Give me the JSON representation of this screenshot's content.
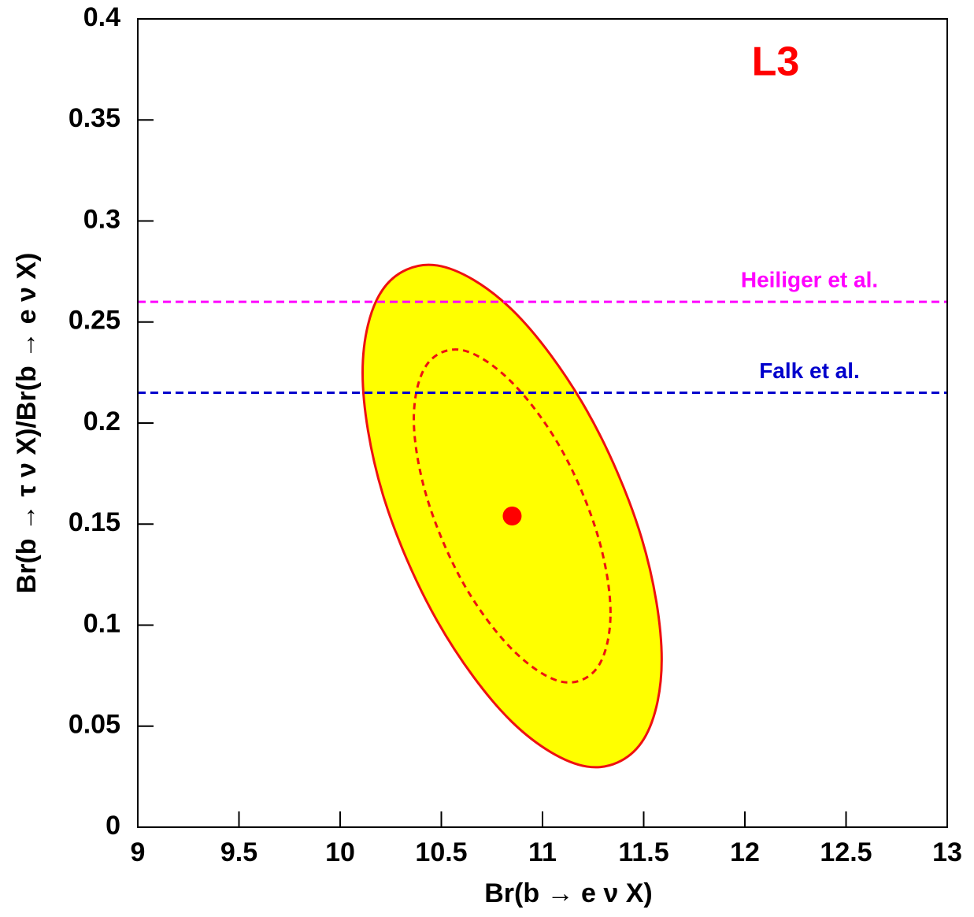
{
  "chart_data": {
    "type": "contour",
    "title": "L3",
    "x_label": "Br(b → e ν X)",
    "y_label": "Br(b → τ ν X)/Br(b → e ν X)",
    "xlim": [
      9,
      13
    ],
    "ylim": [
      0,
      0.4
    ],
    "xticks": [
      9,
      9.5,
      10,
      10.5,
      11,
      11.5,
      12,
      12.5,
      13
    ],
    "yticks": [
      0,
      0.05,
      0.1,
      0.15,
      0.2,
      0.25,
      0.3,
      0.35,
      0.4
    ],
    "contours": [
      {
        "x": [
          11.589,
          11.49,
          11.22,
          10.85,
          10.48,
          10.21,
          10.111,
          10.21,
          10.48,
          10.85,
          11.22,
          11.49
        ],
        "y": [
          0.083,
          0.143,
          0.206,
          0.256,
          0.278,
          0.266,
          0.225,
          0.165,
          0.102,
          0.052,
          0.03,
          0.042
        ],
        "color": "#ee1111",
        "fill": "#ffff00",
        "dashed": false
      },
      {
        "x": [
          11.336,
          11.271,
          11.093,
          10.85,
          10.607,
          10.429,
          10.364,
          10.429,
          10.607,
          10.85,
          11.093,
          11.271
        ],
        "y": [
          0.106,
          0.145,
          0.187,
          0.22,
          0.236,
          0.229,
          0.202,
          0.163,
          0.121,
          0.088,
          0.072,
          0.079
        ],
        "color": "#ee1111",
        "fill": "none",
        "dashed": true
      }
    ],
    "point": {
      "x": 10.85,
      "y": 0.154,
      "color": "#ff0000"
    },
    "hlines": [
      {
        "label": "Heiliger et al.",
        "y": 0.26,
        "color": "#ff00ff"
      },
      {
        "label": "Falk et al.",
        "y": 0.215,
        "color": "#0000cc"
      }
    ]
  }
}
